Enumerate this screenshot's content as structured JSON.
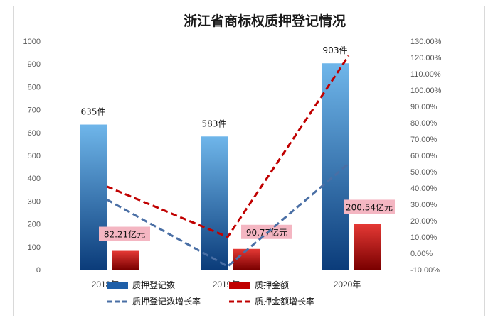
{
  "chart_data": {
    "type": "bar",
    "title": "浙江省商标权质押登记情况",
    "categories": [
      "2018年",
      "2019年",
      "2020年"
    ],
    "series": [
      {
        "name": "质押登记数",
        "kind": "bar",
        "axis": "left",
        "values": [
          635,
          583,
          903
        ],
        "labels": [
          "635件",
          "583件",
          "903件"
        ],
        "color": "#1f5fa8"
      },
      {
        "name": "质押金额",
        "kind": "bar",
        "axis": "left",
        "values": [
          82.21,
          90.77,
          200.54
        ],
        "labels": [
          "82.21亿元",
          "90.77亿元",
          "200.54亿元"
        ],
        "color": "#c00000"
      },
      {
        "name": "质押登记数增长率",
        "kind": "line",
        "style": "dashed",
        "axis": "right",
        "values": [
          0.33,
          -0.08,
          0.55
        ],
        "color": "#4a6fa5"
      },
      {
        "name": "质押金额增长率",
        "kind": "line",
        "style": "dashed",
        "axis": "right",
        "values": [
          0.41,
          0.1,
          1.21
        ],
        "color": "#c00000"
      }
    ],
    "y_left": {
      "min": 0,
      "max": 1000,
      "step": 100,
      "ticks": [
        "0",
        "100",
        "200",
        "300",
        "400",
        "500",
        "600",
        "700",
        "800",
        "900",
        "1000"
      ]
    },
    "y_right": {
      "min": -0.1,
      "max": 1.3,
      "step": 0.1,
      "ticks": [
        "-10.00%",
        "0.00%",
        "10.00%",
        "20.00%",
        "30.00%",
        "40.00%",
        "50.00%",
        "60.00%",
        "70.00%",
        "80.00%",
        "90.00%",
        "100.00%",
        "110.00%",
        "120.00%",
        "130.00%"
      ]
    },
    "grid": false,
    "legend_position": "bottom"
  }
}
